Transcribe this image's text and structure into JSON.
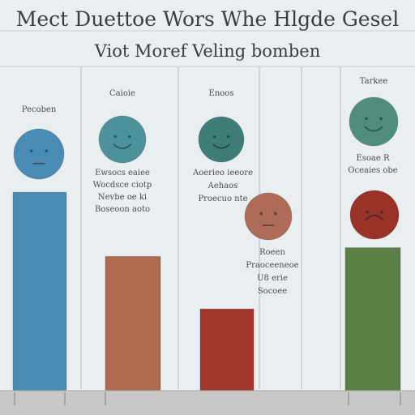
{
  "title_line1": "Mect Duettoe Wors Whe Hlgde Gesel",
  "title_line2": "Viot Moref Veling bomben",
  "chart_data": {
    "type": "bar",
    "title": "Mect Duettoe Wors Whe Hlgde Gesel",
    "subtitle": "Viot Moref Veling bomben",
    "categories": [
      "",
      "",
      "",
      ""
    ],
    "values": [
      68,
      46,
      28,
      49
    ],
    "ylim": [
      0,
      100
    ],
    "grid": true,
    "legend": "none",
    "colors": [
      "#4a8cb4",
      "#ae6a4d",
      "#a2352c",
      "#5b8046"
    ],
    "face_colors": [
      "#4a8cb4",
      "#4d929a",
      "#3f7d78",
      "#508d7f",
      "#ad6b58",
      "#9a3228"
    ],
    "face_expressions": [
      "neutral",
      "smile",
      "smirk",
      "grin",
      "neutral",
      "frown"
    ]
  },
  "annotations": [
    {
      "id": "a1",
      "lines": [
        "Pecoben"
      ]
    },
    {
      "id": "a2",
      "lines": [
        "Caioie"
      ]
    },
    {
      "id": "a3",
      "lines": [
        "Enoos"
      ]
    },
    {
      "id": "a4",
      "lines": [
        "Tarkee"
      ]
    },
    {
      "id": "a5",
      "lines": [
        "Ewsocs eaiee",
        "Wocdsce ciotp",
        "Nevbe oe ki",
        "Boseoon aoto"
      ]
    },
    {
      "id": "a6",
      "lines": [
        "Aoerieo ieeore",
        "Aehaos",
        "Proecuo nte"
      ]
    },
    {
      "id": "a7",
      "lines": [
        "Esoae R",
        "Oceaies obe"
      ]
    },
    {
      "id": "a8",
      "lines": [
        "Roeen",
        "Praoceeneoe",
        "U8 erie",
        "Socoee"
      ]
    }
  ]
}
